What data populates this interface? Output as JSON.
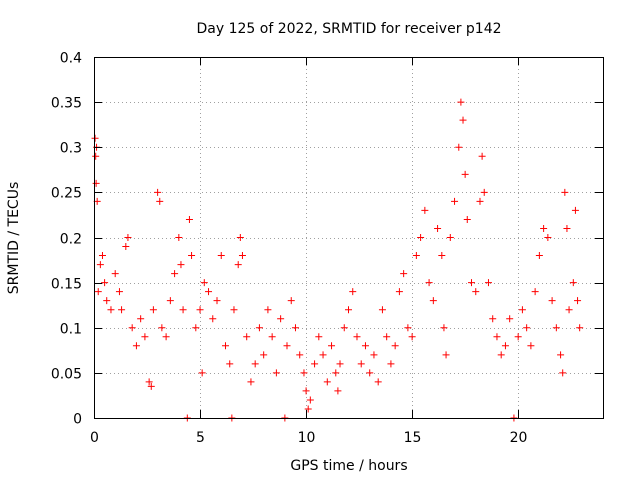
{
  "chart_data": {
    "type": "scatter",
    "title": "Day 125 of 2022, SRMTID for receiver p142",
    "xlabel": "GPS time / hours",
    "ylabel": "SRMTID / TECUs",
    "xlim": [
      0,
      24
    ],
    "ylim": [
      0,
      0.4
    ],
    "x_ticks": [
      0,
      5,
      10,
      15,
      20
    ],
    "y_ticks": [
      0,
      0.05,
      0.1,
      0.15,
      0.2,
      0.25,
      0.3,
      0.35,
      0.4
    ],
    "x_tick_labels": [
      "0",
      "5",
      "10",
      "15",
      "20"
    ],
    "y_tick_labels": [
      "0",
      "0.05",
      "0.1",
      "0.15",
      "0.2",
      "0.25",
      "0.3",
      "0.35",
      "0.4"
    ],
    "grid": true,
    "marker": "plus",
    "color": "#ff0000",
    "series": [
      {
        "name": "SRMTID",
        "points": [
          [
            0.05,
            0.31
          ],
          [
            0.08,
            0.29
          ],
          [
            0.1,
            0.26
          ],
          [
            0.12,
            0.3
          ],
          [
            0.15,
            0.24
          ],
          [
            0.2,
            0.14
          ],
          [
            0.3,
            0.17
          ],
          [
            0.4,
            0.18
          ],
          [
            0.5,
            0.15
          ],
          [
            0.6,
            0.13
          ],
          [
            0.8,
            0.12
          ],
          [
            1.0,
            0.16
          ],
          [
            1.2,
            0.14
          ],
          [
            1.3,
            0.12
          ],
          [
            1.5,
            0.19
          ],
          [
            1.6,
            0.2
          ],
          [
            1.8,
            0.1
          ],
          [
            2.0,
            0.08
          ],
          [
            2.2,
            0.11
          ],
          [
            2.4,
            0.09
          ],
          [
            2.6,
            0.04
          ],
          [
            2.7,
            0.035
          ],
          [
            2.8,
            0.12
          ],
          [
            3.0,
            0.25
          ],
          [
            3.1,
            0.24
          ],
          [
            3.2,
            0.1
          ],
          [
            3.4,
            0.09
          ],
          [
            3.6,
            0.13
          ],
          [
            3.8,
            0.16
          ],
          [
            4.0,
            0.2
          ],
          [
            4.1,
            0.17
          ],
          [
            4.2,
            0.12
          ],
          [
            4.4,
            0.0
          ],
          [
            4.5,
            0.22
          ],
          [
            4.6,
            0.18
          ],
          [
            4.8,
            0.1
          ],
          [
            5.0,
            0.12
          ],
          [
            5.1,
            0.05
          ],
          [
            5.2,
            0.15
          ],
          [
            5.4,
            0.14
          ],
          [
            5.6,
            0.11
          ],
          [
            5.8,
            0.13
          ],
          [
            6.0,
            0.18
          ],
          [
            6.2,
            0.08
          ],
          [
            6.4,
            0.06
          ],
          [
            6.5,
            0.0
          ],
          [
            6.6,
            0.12
          ],
          [
            6.8,
            0.17
          ],
          [
            6.9,
            0.2
          ],
          [
            7.0,
            0.18
          ],
          [
            7.2,
            0.09
          ],
          [
            7.4,
            0.04
          ],
          [
            7.6,
            0.06
          ],
          [
            7.8,
            0.1
          ],
          [
            8.0,
            0.07
          ],
          [
            8.2,
            0.12
          ],
          [
            8.4,
            0.09
          ],
          [
            8.6,
            0.05
          ],
          [
            8.8,
            0.11
          ],
          [
            9.0,
            0.0
          ],
          [
            9.1,
            0.08
          ],
          [
            9.3,
            0.13
          ],
          [
            9.5,
            0.1
          ],
          [
            9.7,
            0.07
          ],
          [
            9.9,
            0.05
          ],
          [
            10.0,
            0.03
          ],
          [
            10.1,
            0.01
          ],
          [
            10.2,
            0.02
          ],
          [
            10.4,
            0.06
          ],
          [
            10.6,
            0.09
          ],
          [
            10.8,
            0.07
          ],
          [
            11.0,
            0.04
          ],
          [
            11.2,
            0.08
          ],
          [
            11.4,
            0.05
          ],
          [
            11.5,
            0.03
          ],
          [
            11.6,
            0.06
          ],
          [
            11.8,
            0.1
          ],
          [
            12.0,
            0.12
          ],
          [
            12.2,
            0.14
          ],
          [
            12.4,
            0.09
          ],
          [
            12.6,
            0.06
          ],
          [
            12.8,
            0.08
          ],
          [
            13.0,
            0.05
          ],
          [
            13.2,
            0.07
          ],
          [
            13.4,
            0.04
          ],
          [
            13.6,
            0.12
          ],
          [
            13.8,
            0.09
          ],
          [
            14.0,
            0.06
          ],
          [
            14.2,
            0.08
          ],
          [
            14.4,
            0.14
          ],
          [
            14.6,
            0.16
          ],
          [
            14.8,
            0.1
          ],
          [
            15.0,
            0.09
          ],
          [
            15.2,
            0.18
          ],
          [
            15.4,
            0.2
          ],
          [
            15.6,
            0.23
          ],
          [
            15.8,
            0.15
          ],
          [
            16.0,
            0.13
          ],
          [
            16.2,
            0.21
          ],
          [
            16.4,
            0.18
          ],
          [
            16.5,
            0.1
          ],
          [
            16.6,
            0.07
          ],
          [
            16.8,
            0.2
          ],
          [
            17.0,
            0.24
          ],
          [
            17.2,
            0.3
          ],
          [
            17.3,
            0.35
          ],
          [
            17.4,
            0.33
          ],
          [
            17.5,
            0.27
          ],
          [
            17.6,
            0.22
          ],
          [
            17.8,
            0.15
          ],
          [
            18.0,
            0.14
          ],
          [
            18.2,
            0.24
          ],
          [
            18.3,
            0.29
          ],
          [
            18.4,
            0.25
          ],
          [
            18.6,
            0.15
          ],
          [
            18.8,
            0.11
          ],
          [
            19.0,
            0.09
          ],
          [
            19.2,
            0.07
          ],
          [
            19.4,
            0.08
          ],
          [
            19.6,
            0.11
          ],
          [
            19.8,
            0.0
          ],
          [
            20.0,
            0.09
          ],
          [
            20.2,
            0.12
          ],
          [
            20.4,
            0.1
          ],
          [
            20.6,
            0.08
          ],
          [
            20.8,
            0.14
          ],
          [
            21.0,
            0.18
          ],
          [
            21.2,
            0.21
          ],
          [
            21.4,
            0.2
          ],
          [
            21.6,
            0.13
          ],
          [
            21.8,
            0.1
          ],
          [
            22.0,
            0.07
          ],
          [
            22.1,
            0.05
          ],
          [
            22.2,
            0.25
          ],
          [
            22.3,
            0.21
          ],
          [
            22.4,
            0.12
          ],
          [
            22.6,
            0.15
          ],
          [
            22.7,
            0.23
          ],
          [
            22.8,
            0.13
          ],
          [
            22.9,
            0.1
          ]
        ]
      }
    ]
  }
}
